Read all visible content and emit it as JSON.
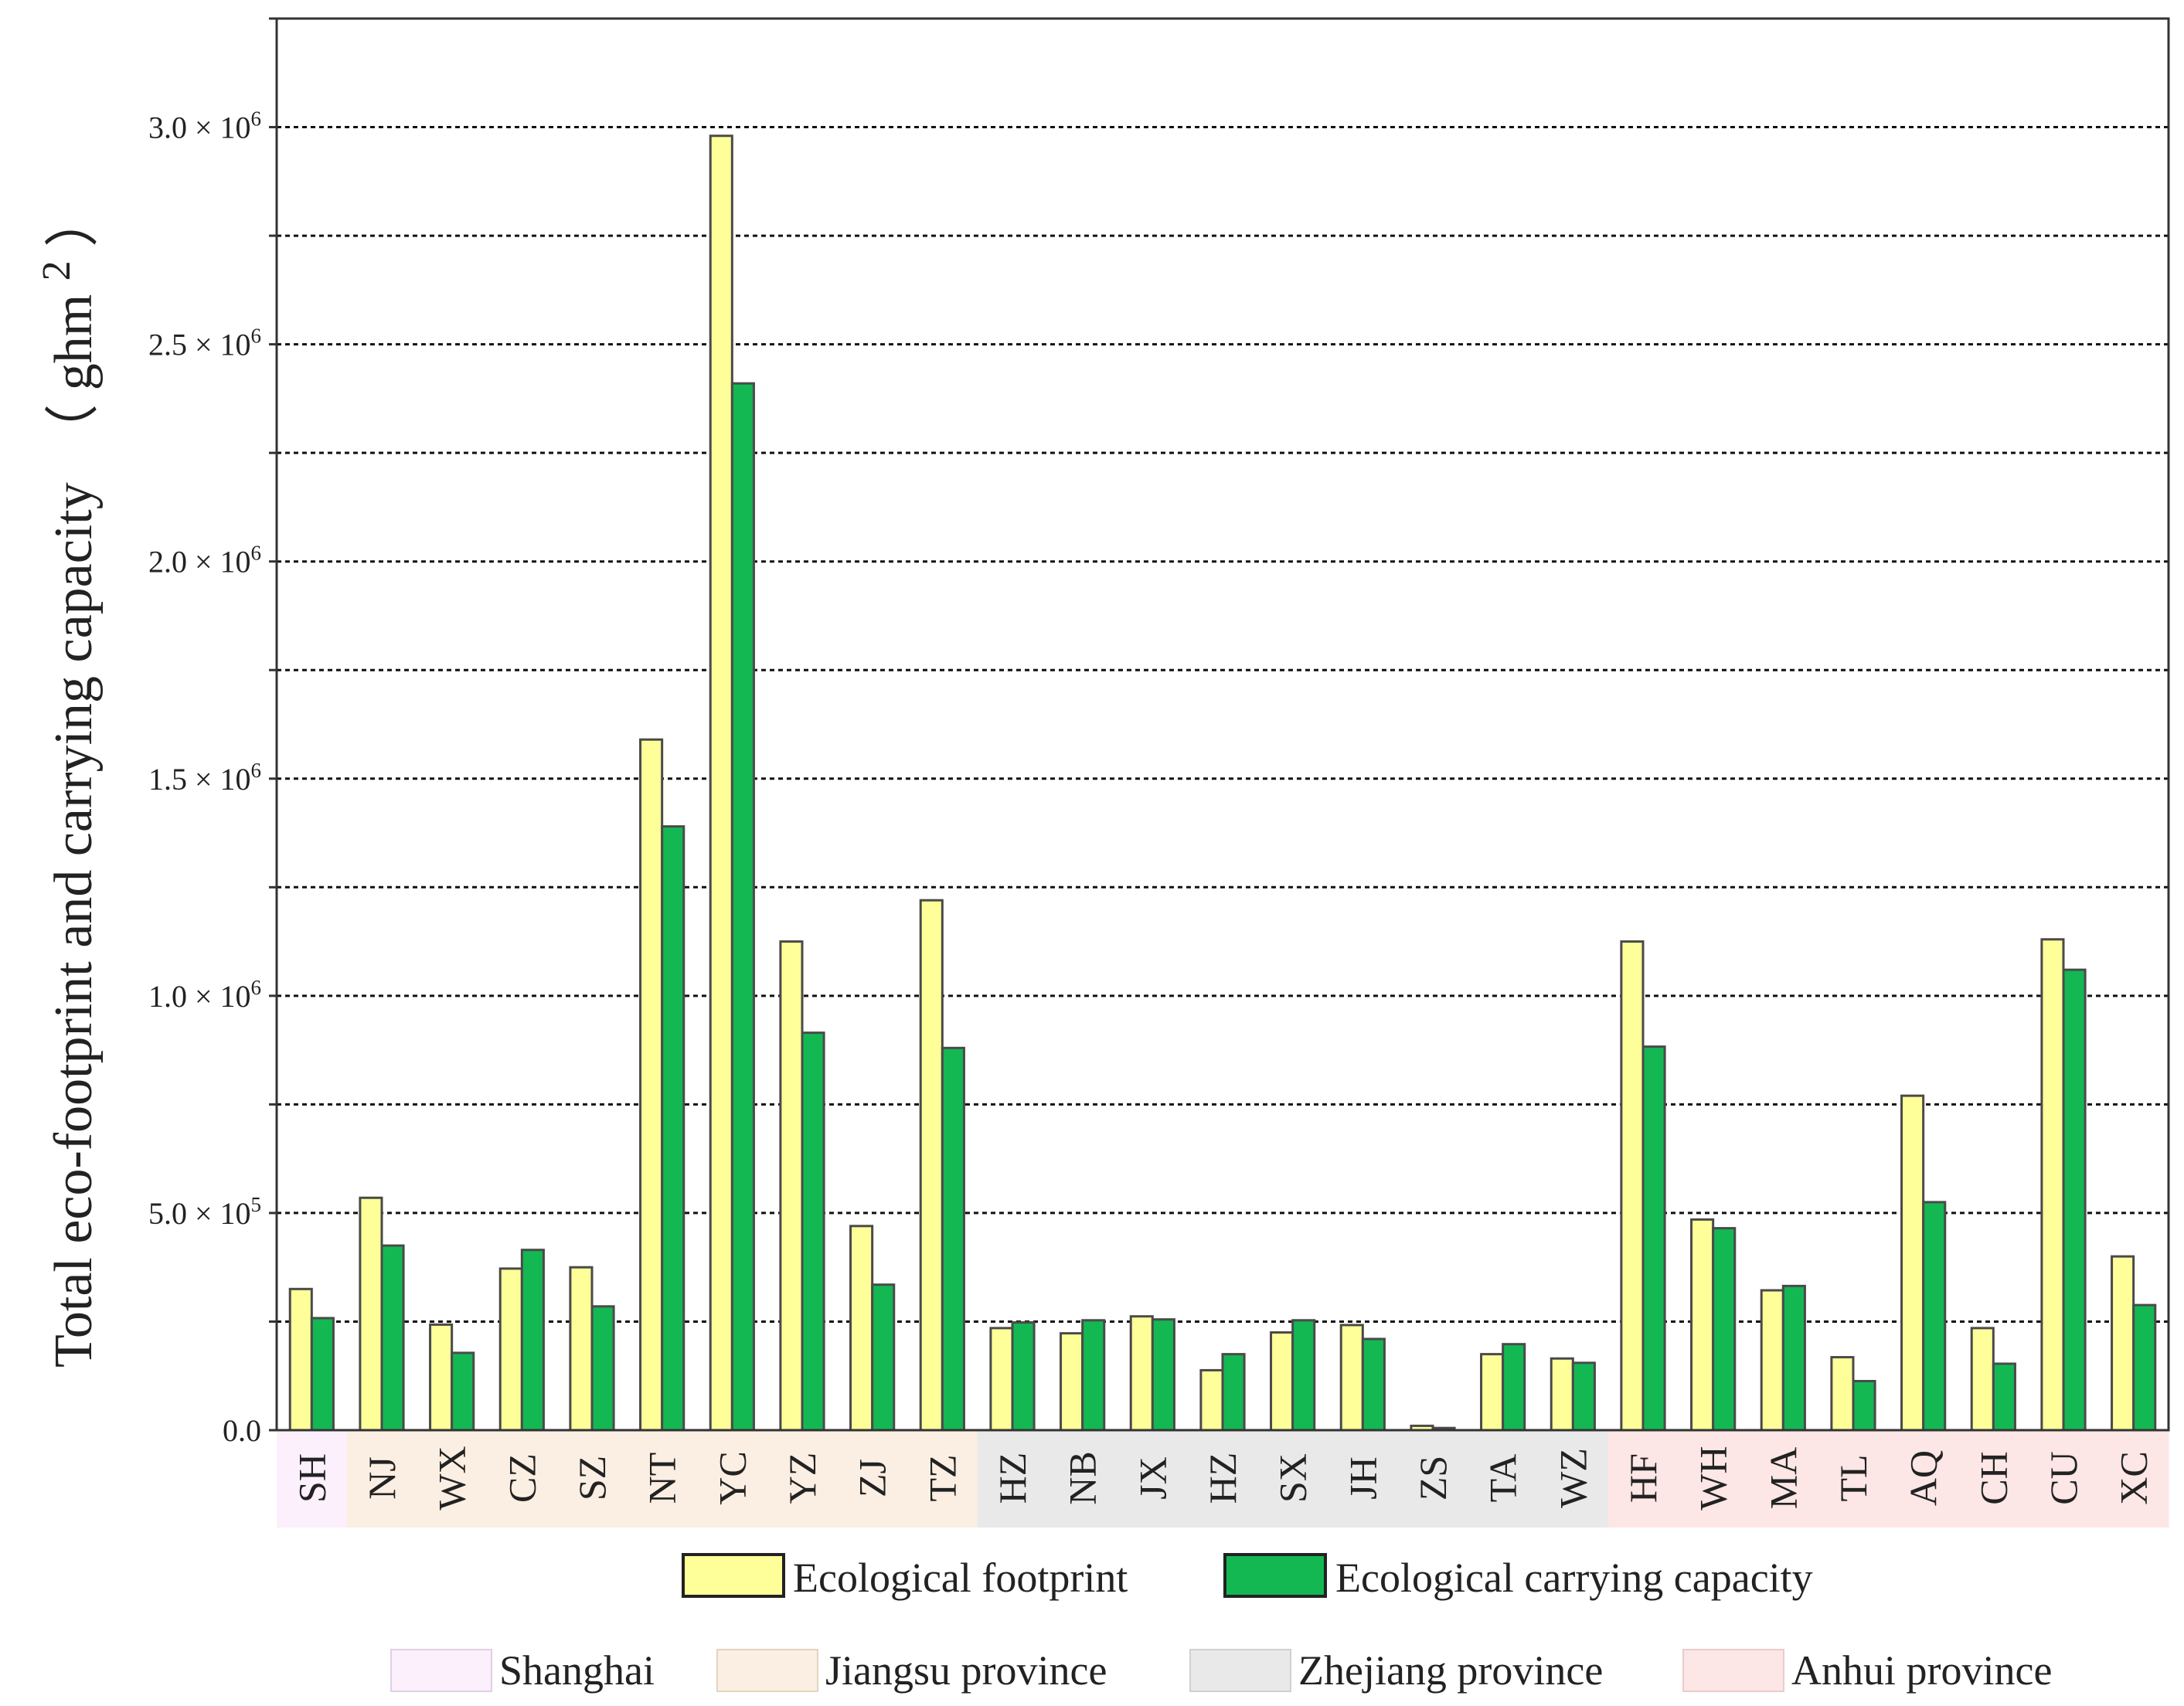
{
  "chart_data": {
    "type": "bar",
    "title": "",
    "xlabel": "",
    "ylabel": "Total eco-footprint and carrying capacity （ghm²）",
    "ylabel_main": "Total eco-footprint and carrying capacity",
    "ylabel_unit_open": "（",
    "ylabel_unit": "ghm",
    "ylabel_unit_sup": "2",
    "ylabel_unit_close": "）",
    "ylim": [
      0,
      3250000
    ],
    "ygrid_step": 250000,
    "yticks": [
      {
        "value": 0,
        "label": "0.0",
        "exp": ""
      },
      {
        "value": 500000,
        "label": "5.0 × 10",
        "exp": "5"
      },
      {
        "value": 1000000,
        "label": "1.0 × 10",
        "exp": "6"
      },
      {
        "value": 1500000,
        "label": "1.5 × 10",
        "exp": "6"
      },
      {
        "value": 2000000,
        "label": "2.0 × 10",
        "exp": "6"
      },
      {
        "value": 2500000,
        "label": "2.5 × 10",
        "exp": "6"
      },
      {
        "value": 3000000,
        "label": "3.0 × 10",
        "exp": "6"
      }
    ],
    "categories": [
      "SH",
      "NJ",
      "WX",
      "CZ",
      "SZ",
      "NT",
      "YC",
      "YZ",
      "ZJ",
      "TZ",
      "HZ",
      "NB",
      "JX",
      "HZ",
      "SX",
      "JH",
      "ZS",
      "TA",
      "WZ",
      "HF",
      "WH",
      "MA",
      "TL",
      "AQ",
      "CH",
      "CU",
      "XC"
    ],
    "category_region": [
      0,
      1,
      1,
      1,
      1,
      1,
      1,
      1,
      1,
      1,
      2,
      2,
      2,
      2,
      2,
      2,
      2,
      2,
      2,
      3,
      3,
      3,
      3,
      3,
      3,
      3,
      3
    ],
    "series": [
      {
        "name": "Ecological footprint",
        "color": "#ffff99",
        "values": [
          325000,
          535000,
          243000,
          372000,
          375000,
          1590000,
          2980000,
          1125000,
          470000,
          1220000,
          235000,
          223000,
          262000,
          138000,
          225000,
          242000,
          10000,
          175000,
          165000,
          1125000,
          485000,
          322000,
          168000,
          770000,
          235000,
          1130000,
          400000
        ]
      },
      {
        "name": "Ecological carrying capacity",
        "color": "#13b853",
        "values": [
          258000,
          425000,
          178000,
          415000,
          285000,
          1390000,
          2410000,
          915000,
          335000,
          880000,
          248000,
          253000,
          255000,
          175000,
          253000,
          210000,
          5000,
          198000,
          155000,
          883000,
          465000,
          332000,
          113000,
          525000,
          153000,
          1060000,
          288000
        ]
      }
    ],
    "regions": [
      {
        "name": "Shanghai",
        "color": "#fbf0fc"
      },
      {
        "name": "Jiangsu province",
        "color": "#fbefe3"
      },
      {
        "name": "Zhejiang province",
        "color": "#e9e9e9"
      },
      {
        "name": "Anhui province",
        "color": "#fce6e6"
      }
    ],
    "legend_position": "bottom"
  }
}
